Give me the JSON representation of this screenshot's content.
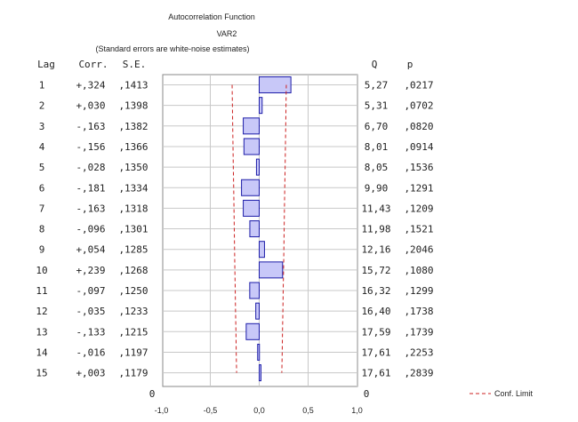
{
  "chart_data": {
    "type": "bar",
    "title": "Autocorrelation Function",
    "subtitle": "VAR2",
    "note": "(Standard errors are white-noise estimates)",
    "columns": {
      "lag": "Lag",
      "corr": "Corr.",
      "se": "S.E.",
      "q": "Q",
      "p": "p"
    },
    "rows": [
      {
        "lag": "1",
        "corr": "+,324",
        "se": ",1413",
        "q": "5,27",
        "p": ",0217"
      },
      {
        "lag": "2",
        "corr": "+,030",
        "se": ",1398",
        "q": "5,31",
        "p": ",0702"
      },
      {
        "lag": "3",
        "corr": "-,163",
        "se": ",1382",
        "q": "6,70",
        "p": ",0820"
      },
      {
        "lag": "4",
        "corr": "-,156",
        "se": ",1366",
        "q": "8,01",
        "p": ",0914"
      },
      {
        "lag": "5",
        "corr": "-,028",
        "se": ",1350",
        "q": "8,05",
        "p": ",1536"
      },
      {
        "lag": "6",
        "corr": "-,181",
        "se": ",1334",
        "q": "9,90",
        "p": ",1291"
      },
      {
        "lag": "7",
        "corr": "-,163",
        "se": ",1318",
        "q": "11,43",
        "p": ",1209"
      },
      {
        "lag": "8",
        "corr": "-,096",
        "se": ",1301",
        "q": "11,98",
        "p": ",1521"
      },
      {
        "lag": "9",
        "corr": "+,054",
        "se": ",1285",
        "q": "12,16",
        "p": ",2046"
      },
      {
        "lag": "10",
        "corr": "+,239",
        "se": ",1268",
        "q": "15,72",
        "p": ",1080"
      },
      {
        "lag": "11",
        "corr": "-,097",
        "se": ",1250",
        "q": "16,32",
        "p": ",1299"
      },
      {
        "lag": "12",
        "corr": "-,035",
        "se": ",1233",
        "q": "16,40",
        "p": ",1738"
      },
      {
        "lag": "13",
        "corr": "-,133",
        "se": ",1215",
        "q": "17,59",
        "p": ",1739"
      },
      {
        "lag": "14",
        "corr": "-,016",
        "se": ",1197",
        "q": "17,61",
        "p": ",2253"
      },
      {
        "lag": "15",
        "corr": "+,003",
        "se": ",1179",
        "q": "17,61",
        "p": ",2839"
      }
    ],
    "values": [
      0.324,
      0.03,
      -0.163,
      -0.156,
      -0.028,
      -0.181,
      -0.163,
      -0.096,
      0.054,
      0.239,
      -0.097,
      -0.035,
      -0.133,
      -0.016,
      0.003
    ],
    "conf_limit": [
      0.277,
      0.274,
      0.271,
      0.268,
      0.265,
      0.261,
      0.258,
      0.255,
      0.252,
      0.249,
      0.245,
      0.242,
      0.238,
      0.235,
      0.231
    ],
    "xlim": [
      -1.0,
      1.0
    ],
    "xticks": [
      "-1,0",
      "-0,5",
      "0,0",
      "0,5",
      "1,0"
    ],
    "zero_labels": {
      "left": "0",
      "right": "0"
    },
    "legend": "Conf. Limit",
    "grid": true,
    "legend_position": "bottom-right",
    "colors": {
      "bar_fill": "#c8c8f8",
      "bar_stroke": "#1c1ca8",
      "conf_line": "#cc2020",
      "grid": "#c8c8c8",
      "frame": "#888888"
    }
  }
}
